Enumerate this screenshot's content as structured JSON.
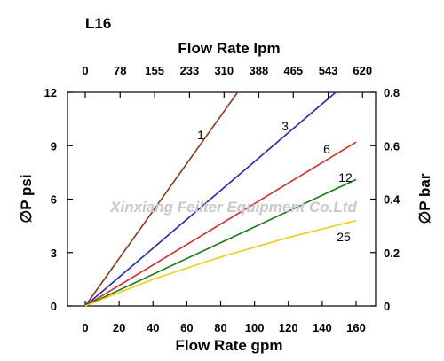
{
  "chart_data": {
    "type": "line",
    "model_label": "L16",
    "watermark": "Xinxiang Feilter Equipment Co.Ltd",
    "x_bottom": {
      "label": "Flow Rate gpm",
      "ticks": [
        0,
        20,
        40,
        60,
        80,
        100,
        120,
        140,
        160
      ],
      "range": [
        0,
        164
      ]
    },
    "x_top": {
      "label": "Flow Rate lpm",
      "ticks": [
        "0",
        "78",
        "155",
        "233",
        "310",
        "388",
        "465",
        "543",
        "620"
      ],
      "tick_gpm": [
        0,
        20.6,
        41,
        61.6,
        82,
        102.5,
        122.9,
        143.5,
        163.8
      ]
    },
    "y_left": {
      "label": "∅P psi",
      "ticks": [
        0,
        3,
        6,
        9,
        12
      ],
      "range": [
        0,
        12
      ]
    },
    "y_right": {
      "label": "∅P bar",
      "ticks": [
        "0",
        "0.2",
        "0.4",
        "0.6",
        "0.8"
      ],
      "tick_psi": [
        0,
        3,
        6,
        9,
        12
      ]
    },
    "series": [
      {
        "name": "1",
        "color": "#8b3a1a",
        "points": [
          [
            0,
            0
          ],
          [
            90,
            12
          ]
        ]
      },
      {
        "name": "3",
        "color": "#1f2aa8",
        "points": [
          [
            0,
            0
          ],
          [
            148,
            12
          ]
        ]
      },
      {
        "name": "6",
        "color": "#d42a2a",
        "points": [
          [
            0,
            0
          ],
          [
            160,
            9.2
          ]
        ]
      },
      {
        "name": "12",
        "color": "#137a13",
        "points": [
          [
            0,
            0
          ],
          [
            160,
            7.1
          ]
        ]
      },
      {
        "name": "25",
        "color": "#f2cc12",
        "points": [
          [
            0,
            0
          ],
          [
            40,
            1.5
          ],
          [
            80,
            2.75
          ],
          [
            120,
            3.85
          ],
          [
            160,
            4.8
          ]
        ]
      }
    ]
  }
}
